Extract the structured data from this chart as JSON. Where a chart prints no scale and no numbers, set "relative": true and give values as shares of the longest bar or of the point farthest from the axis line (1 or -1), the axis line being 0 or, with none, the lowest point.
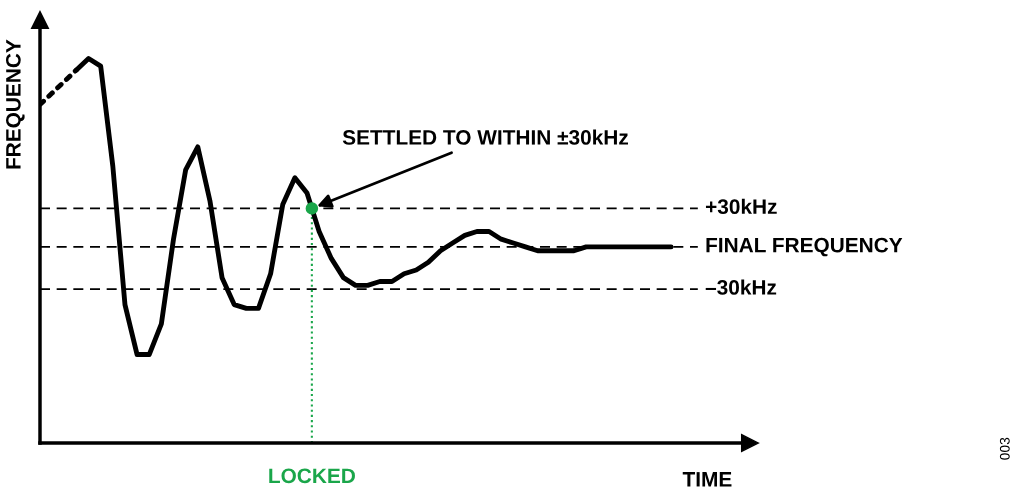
{
  "chart_data": {
    "type": "line",
    "relative": true,
    "xlabel": "TIME",
    "ylabel": "FREQUENCY",
    "categories": [
      null,
      null,
      null,
      null,
      null,
      null,
      null,
      null,
      null,
      null,
      null,
      null,
      null,
      null,
      null,
      null,
      null,
      null,
      null,
      null,
      null,
      null,
      null,
      null,
      null,
      null,
      null,
      null,
      null,
      null,
      null,
      null,
      null,
      null,
      null,
      null,
      null,
      null,
      null,
      null,
      null,
      null,
      null,
      null,
      null,
      null,
      null,
      null,
      null,
      null,
      null,
      null,
      null,
      null,
      null,
      null,
      null,
      null,
      null
    ],
    "series": [
      {
        "color": "#000000",
        "line_style": "dotted",
        "values": [
          0.88,
          0.91,
          0.94,
          0.97,
          null,
          null,
          null,
          null,
          null,
          null,
          null,
          null,
          null,
          null,
          null,
          null,
          null,
          null,
          null,
          null,
          null,
          null,
          null,
          null,
          null,
          null,
          null,
          null,
          null,
          null,
          null,
          null,
          null,
          null,
          null,
          null,
          null,
          null,
          null,
          null,
          null,
          null,
          null,
          null,
          null,
          null,
          null,
          null,
          null,
          null,
          null,
          null,
          null,
          null,
          null,
          null,
          null,
          null,
          null
        ]
      },
      {
        "color": "#000000",
        "line_style": "solid",
        "values": [
          null,
          null,
          null,
          0.97,
          1.0,
          0.98,
          0.72,
          0.36,
          0.23,
          0.23,
          0.31,
          0.53,
          0.71,
          0.77,
          0.63,
          0.43,
          0.36,
          0.35,
          0.35,
          0.44,
          0.62,
          0.69,
          0.65,
          0.55,
          0.48,
          0.43,
          0.41,
          0.41,
          0.42,
          0.42,
          0.44,
          0.45,
          0.47,
          0.5,
          0.52,
          0.54,
          0.55,
          0.55,
          0.53,
          0.52,
          0.51,
          0.5,
          0.5,
          0.5,
          0.5,
          0.51,
          0.51,
          0.51,
          0.51,
          0.51,
          0.51,
          0.51,
          0.51,
          null,
          null,
          null,
          null,
          null,
          null
        ]
      }
    ],
    "ref_lines": [
      {
        "axis": "y",
        "value": 0.61,
        "label": "+30kHz",
        "color": "#000000",
        "line_style": "dashed"
      },
      {
        "axis": "y",
        "value": 0.51,
        "label": "FINAL FREQUENCY",
        "color": "#000000",
        "line_style": "dashed"
      },
      {
        "axis": "y",
        "value": 0.4,
        "label": "–30kHz",
        "color": "#000000",
        "line_style": "dashed"
      }
    ],
    "annotations": [
      "SETTLED TO WITHIN ±30kHz",
      "LOCKED",
      "003"
    ],
    "legend": false
  }
}
